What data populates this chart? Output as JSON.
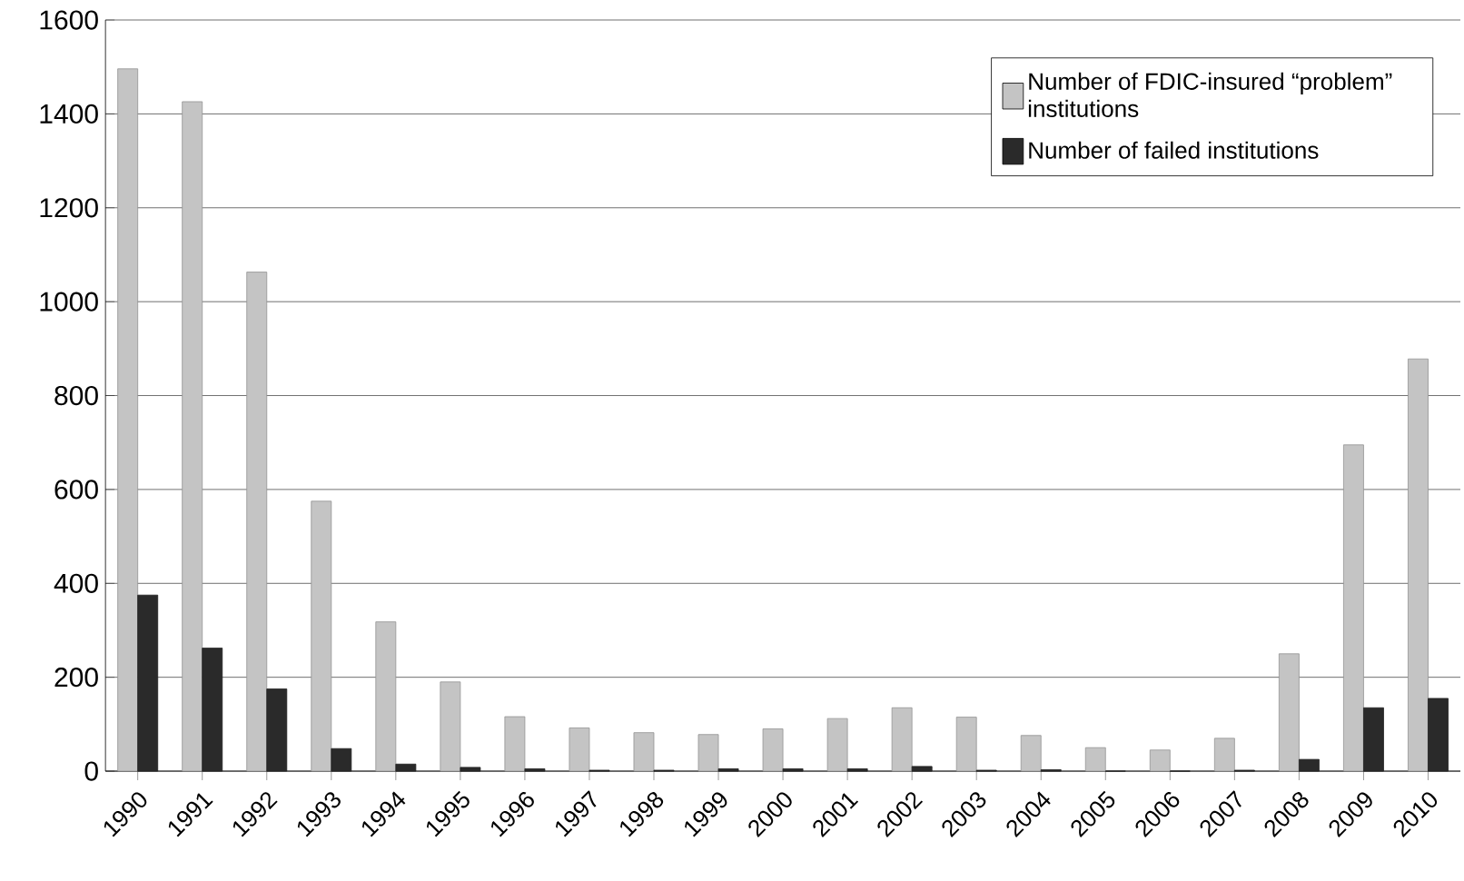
{
  "chart_data": {
    "type": "bar",
    "categories": [
      "1990",
      "1991",
      "1992",
      "1993",
      "1994",
      "1995",
      "1996",
      "1997",
      "1998",
      "1999",
      "2000",
      "2001",
      "2002",
      "2003",
      "2004",
      "2005",
      "2006",
      "2007",
      "2008",
      "2009",
      "2010"
    ],
    "series": [
      {
        "name": "Number of FDIC-insured “problem” institutions",
        "color": "#c4c4c4",
        "values": [
          1496,
          1426,
          1063,
          575,
          318,
          190,
          116,
          92,
          82,
          78,
          90,
          112,
          135,
          115,
          76,
          50,
          45,
          70,
          250,
          695,
          878
        ]
      },
      {
        "name": "Number of failed institutions",
        "color": "#2a2a2a",
        "values": [
          375,
          262,
          175,
          48,
          15,
          8,
          5,
          2,
          2,
          5,
          5,
          5,
          10,
          2,
          3,
          0,
          0,
          2,
          25,
          135,
          155
        ]
      }
    ],
    "ylim": [
      0,
      1600
    ],
    "yticks": [
      0,
      200,
      400,
      600,
      800,
      1000,
      1200,
      1400,
      1600
    ],
    "grid": "y",
    "legend": "top right"
  }
}
